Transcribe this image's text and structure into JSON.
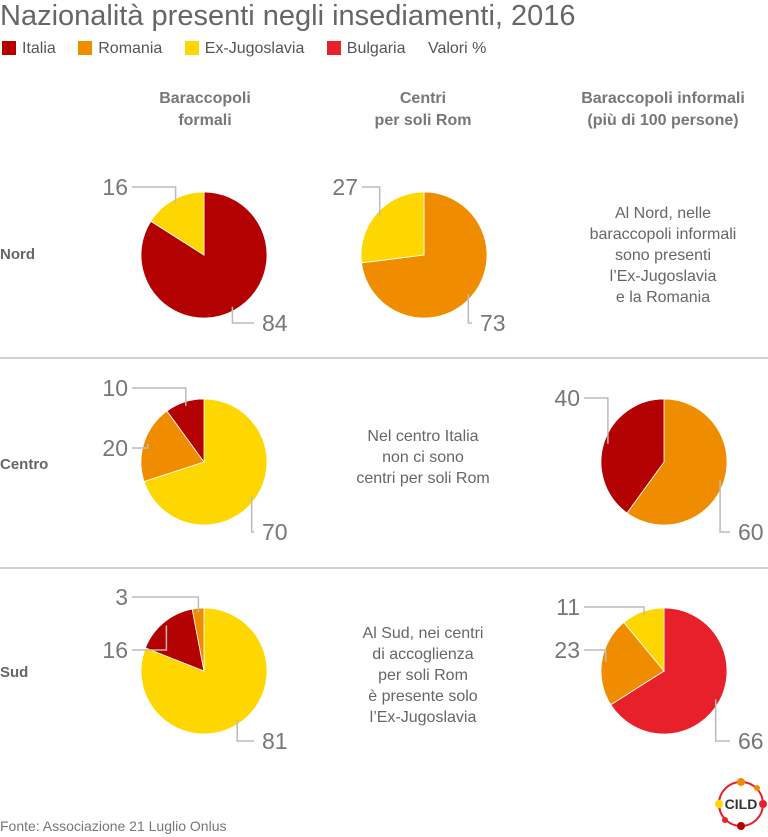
{
  "title": "Nazionalità presenti negli insediamenti, 2016",
  "legend": {
    "items": [
      {
        "label": "Italia",
        "color": "#b30000"
      },
      {
        "label": "Romania",
        "color": "#ef8c00"
      },
      {
        "label": "Ex-Jugoslavia",
        "color": "#ffd700"
      },
      {
        "label": "Bulgaria",
        "color": "#e8202a"
      }
    ],
    "unit": "Valori %"
  },
  "columns": [
    {
      "line1": "Baraccopoli",
      "line2": "formali"
    },
    {
      "line1": "Centri",
      "line2": "per soli Rom"
    },
    {
      "line1": "Baraccopoli informali",
      "line2": "(più di 100 persone)"
    }
  ],
  "rows": [
    "Nord",
    "Centro",
    "Sud"
  ],
  "notes": {
    "nord_col3": [
      "Al Nord, nelle",
      "baraccopoli informali",
      "sono presenti",
      "l’Ex-Jugoslavia",
      "e la Romania"
    ],
    "centro_col2": [
      "Nel centro Italia",
      "non ci sono",
      "centri per soli Rom"
    ],
    "sud_col2": [
      "Al Sud, nei centri",
      "di accoglienza",
      "per soli Rom",
      "è presente solo",
      "l’Ex-Jugoslavia"
    ]
  },
  "source": "Fonte: Associazione 21 Luglio Onlus",
  "logo": {
    "text": "CILD"
  },
  "chart_data": [
    {
      "type": "pie",
      "row": "Nord",
      "column": "Baraccopoli formali",
      "slices": [
        {
          "label": "Italia",
          "value": 84,
          "color": "#b30000"
        },
        {
          "label": "Ex-Jugoslavia",
          "value": 16,
          "color": "#ffd700"
        }
      ]
    },
    {
      "type": "pie",
      "row": "Nord",
      "column": "Centri per soli Rom",
      "slices": [
        {
          "label": "Romania",
          "value": 73,
          "color": "#ef8c00"
        },
        {
          "label": "Ex-Jugoslavia",
          "value": 27,
          "color": "#ffd700"
        }
      ]
    },
    {
      "type": "pie",
      "row": "Centro",
      "column": "Baraccopoli formali",
      "slices": [
        {
          "label": "Ex-Jugoslavia",
          "value": 70,
          "color": "#ffd700"
        },
        {
          "label": "Romania",
          "value": 20,
          "color": "#ef8c00"
        },
        {
          "label": "Italia",
          "value": 10,
          "color": "#b30000"
        }
      ]
    },
    {
      "type": "pie",
      "row": "Centro",
      "column": "Baraccopoli informali",
      "slices": [
        {
          "label": "Romania",
          "value": 60,
          "color": "#ef8c00"
        },
        {
          "label": "Italia",
          "value": 40,
          "color": "#b30000"
        }
      ]
    },
    {
      "type": "pie",
      "row": "Sud",
      "column": "Baraccopoli formali",
      "slices": [
        {
          "label": "Ex-Jugoslavia",
          "value": 81,
          "color": "#ffd700"
        },
        {
          "label": "Italia",
          "value": 16,
          "color": "#b30000"
        },
        {
          "label": "Romania",
          "value": 3,
          "color": "#ef8c00"
        }
      ]
    },
    {
      "type": "pie",
      "row": "Sud",
      "column": "Baraccopoli informali",
      "slices": [
        {
          "label": "Bulgaria",
          "value": 66,
          "color": "#e8202a"
        },
        {
          "label": "Romania",
          "value": 23,
          "color": "#ef8c00"
        },
        {
          "label": "Ex-Jugoslavia",
          "value": 11,
          "color": "#ffd700"
        }
      ]
    }
  ]
}
